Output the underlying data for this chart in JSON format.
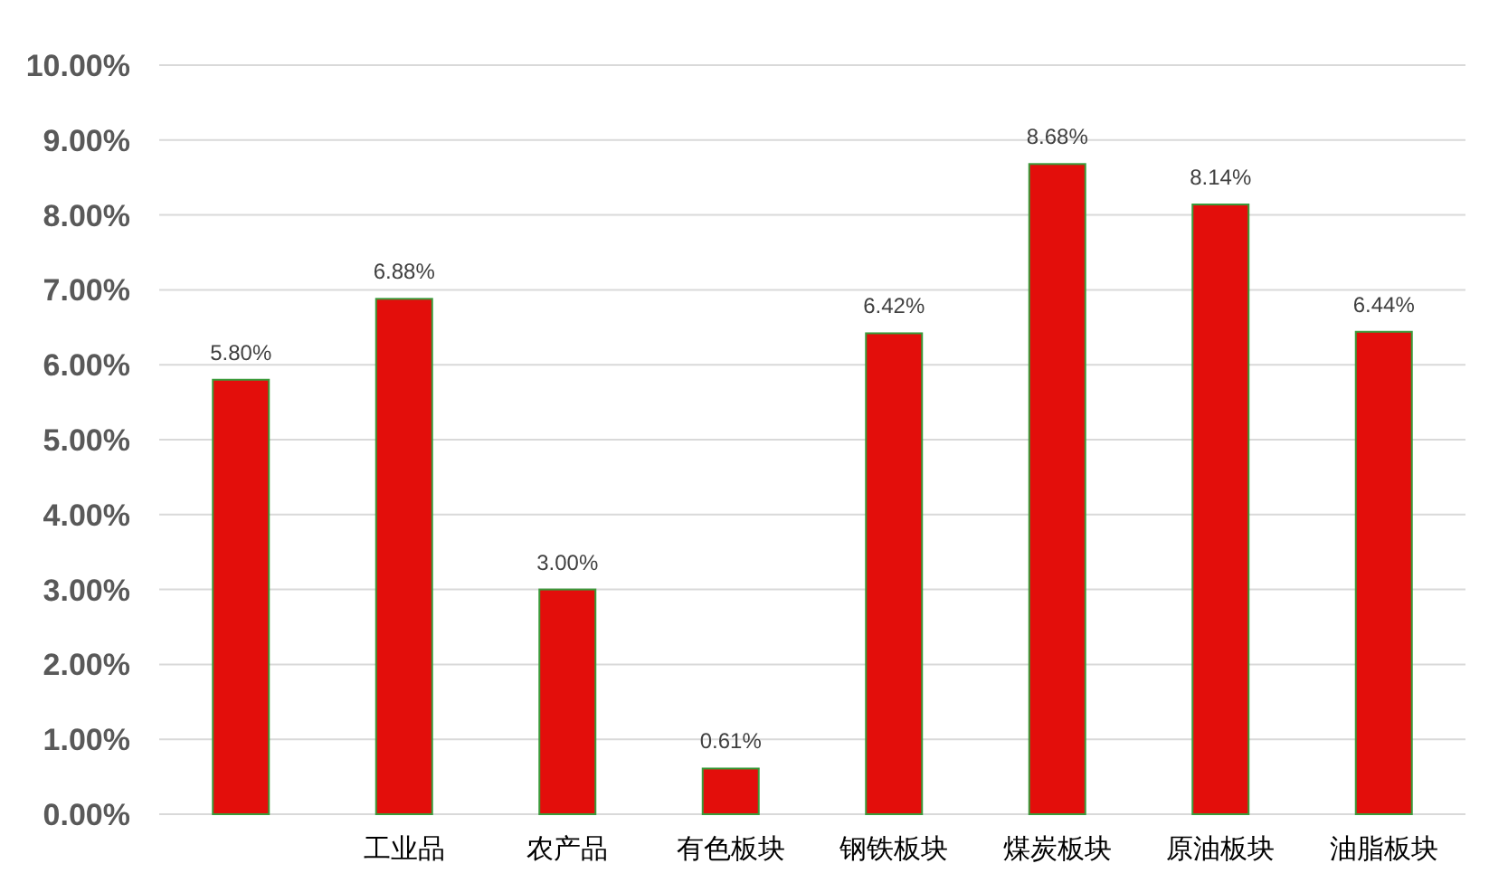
{
  "chart_data": {
    "type": "bar",
    "categories": [
      null,
      "工业品",
      "农产品",
      "有色板块",
      "钢铁板块",
      "煤炭板块",
      "原油板块",
      "油脂板块"
    ],
    "values": [
      5.8,
      6.88,
      3.0,
      0.61,
      6.42,
      8.68,
      8.14,
      6.44
    ],
    "value_labels": [
      "5.80%",
      "6.88%",
      "3.00%",
      "0.61%",
      "6.42%",
      "8.68%",
      "8.14%",
      "6.44%"
    ],
    "color": "#e30e0b",
    "ylim": [
      0,
      10
    ],
    "yticks": [
      {
        "value": 0,
        "label": "0.00%"
      },
      {
        "value": 1,
        "label": "1.00%"
      },
      {
        "value": 2,
        "label": "2.00%"
      },
      {
        "value": 3,
        "label": "3.00%"
      },
      {
        "value": 4,
        "label": "4.00%"
      },
      {
        "value": 5,
        "label": "5.00%"
      },
      {
        "value": 6,
        "label": "6.00%"
      },
      {
        "value": 7,
        "label": "7.00%"
      },
      {
        "value": 8,
        "label": "8.00%"
      },
      {
        "value": 9,
        "label": "9.00%"
      },
      {
        "value": 10,
        "label": "10.00%"
      }
    ],
    "grid": "y"
  }
}
